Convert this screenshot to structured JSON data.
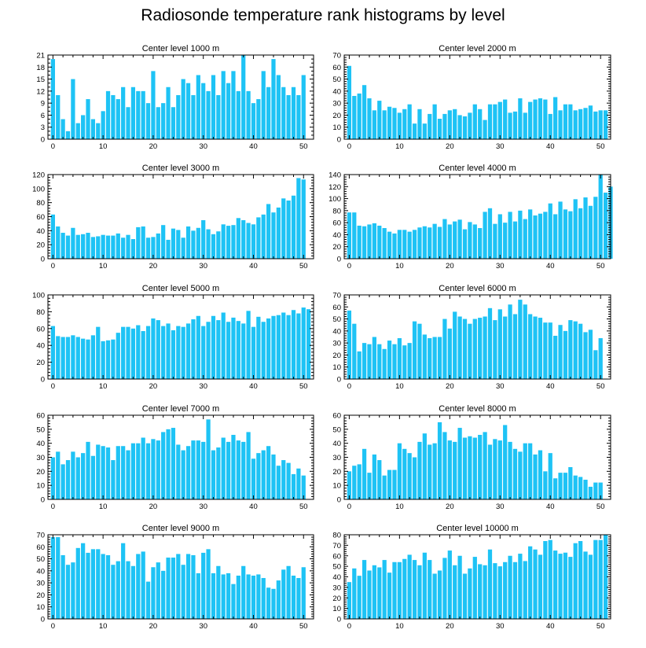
{
  "figure_title": "Radiosonde temperature rank histograms by level",
  "colors": {
    "bar": "#1ec3f5",
    "axis": "#000000"
  },
  "chart_data": [
    {
      "type": "bar",
      "title": "Center level 1000 m",
      "xlim": [
        -1,
        52
      ],
      "ylim": [
        0,
        21
      ],
      "xticks": [
        0,
        10,
        20,
        30,
        40,
        50
      ],
      "yticks": [
        0,
        3,
        6,
        9,
        12,
        15,
        18,
        21
      ],
      "values": [
        20,
        11,
        5,
        2,
        15,
        4,
        6,
        10,
        5,
        4,
        7,
        12,
        11,
        10,
        13,
        8,
        13,
        12,
        12,
        9,
        17,
        8,
        9,
        13,
        8,
        11,
        15,
        14,
        11,
        16,
        14,
        12,
        16,
        11,
        17,
        14,
        17,
        12,
        21,
        12,
        9,
        10,
        17,
        13,
        20,
        16,
        13,
        11,
        13,
        11,
        16
      ]
    },
    {
      "type": "bar",
      "title": "Center level 2000 m",
      "xlim": [
        -1,
        52
      ],
      "ylim": [
        0,
        70
      ],
      "xticks": [
        0,
        10,
        20,
        30,
        40,
        50
      ],
      "yticks": [
        0,
        10,
        20,
        30,
        40,
        50,
        60,
        70
      ],
      "values": [
        61,
        36,
        38,
        45,
        34,
        24,
        32,
        24,
        27,
        26,
        22,
        25,
        29,
        13,
        25,
        13,
        21,
        29,
        17,
        21,
        24,
        25,
        20,
        19,
        22,
        29,
        25,
        16,
        29,
        29,
        31,
        33,
        22,
        23,
        34,
        22,
        31,
        33,
        34,
        33,
        21,
        35,
        24,
        29,
        29,
        24,
        25,
        26,
        28,
        23,
        24,
        24
      ]
    },
    {
      "type": "bar",
      "title": "Center level 3000 m",
      "xlim": [
        -1,
        52
      ],
      "ylim": [
        0,
        120
      ],
      "xticks": [
        0,
        10,
        20,
        30,
        40,
        50
      ],
      "yticks": [
        0,
        20,
        40,
        60,
        80,
        100,
        120
      ],
      "values": [
        63,
        46,
        37,
        33,
        44,
        34,
        35,
        37,
        31,
        32,
        34,
        33,
        33,
        36,
        30,
        34,
        28,
        45,
        46,
        30,
        31,
        36,
        48,
        27,
        43,
        41,
        30,
        46,
        40,
        44,
        55,
        42,
        35,
        39,
        49,
        47,
        48,
        58,
        55,
        51,
        49,
        59,
        63,
        78,
        66,
        73,
        86,
        83,
        90,
        115,
        113
      ]
    },
    {
      "type": "bar",
      "title": "Center level 4000 m",
      "xlim": [
        -1,
        52
      ],
      "ylim": [
        0,
        140
      ],
      "xticks": [
        0,
        10,
        20,
        30,
        40,
        50
      ],
      "yticks": [
        0,
        20,
        40,
        60,
        80,
        100,
        120,
        140
      ],
      "values": [
        77,
        77,
        55,
        54,
        57,
        59,
        55,
        51,
        45,
        42,
        48,
        48,
        45,
        48,
        52,
        54,
        52,
        58,
        53,
        66,
        57,
        62,
        65,
        49,
        61,
        57,
        51,
        78,
        84,
        58,
        74,
        60,
        78,
        62,
        80,
        66,
        82,
        72,
        75,
        78,
        92,
        74,
        95,
        82,
        79,
        99,
        84,
        102,
        88,
        103,
        140,
        110,
        120
      ]
    },
    {
      "type": "bar",
      "title": "Center level 5000 m",
      "xlim": [
        -1,
        52
      ],
      "ylim": [
        0,
        100
      ],
      "xticks": [
        0,
        10,
        20,
        30,
        40,
        50
      ],
      "yticks": [
        0,
        20,
        40,
        60,
        80,
        100
      ],
      "values": [
        63,
        51,
        50,
        50,
        52,
        50,
        48,
        47,
        52,
        62,
        45,
        46,
        47,
        55,
        62,
        62,
        60,
        64,
        57,
        63,
        72,
        70,
        63,
        66,
        58,
        63,
        62,
        66,
        71,
        75,
        63,
        68,
        75,
        70,
        79,
        68,
        73,
        69,
        66,
        81,
        62,
        74,
        68,
        72,
        75,
        76,
        79,
        76,
        82,
        78,
        85,
        83
      ]
    },
    {
      "type": "bar",
      "title": "Center level 6000 m",
      "xlim": [
        -1,
        52
      ],
      "ylim": [
        0,
        70
      ],
      "xticks": [
        0,
        10,
        20,
        30,
        40,
        50
      ],
      "yticks": [
        0,
        10,
        20,
        30,
        40,
        50,
        60,
        70
      ],
      "values": [
        57,
        46,
        23,
        30,
        29,
        35,
        29,
        25,
        32,
        29,
        34,
        28,
        30,
        48,
        46,
        37,
        34,
        35,
        35,
        50,
        42,
        56,
        52,
        50,
        46,
        50,
        51,
        52,
        59,
        49,
        58,
        52,
        62,
        54,
        66,
        62,
        54,
        52,
        51,
        47,
        47,
        36,
        45,
        40,
        49,
        48,
        46,
        39,
        41,
        24,
        34
      ]
    },
    {
      "type": "bar",
      "title": "Center level 7000 m",
      "xlim": [
        -1,
        52
      ],
      "ylim": [
        0,
        60
      ],
      "xticks": [
        0,
        10,
        20,
        30,
        40,
        50
      ],
      "yticks": [
        0,
        10,
        20,
        30,
        40,
        50,
        60
      ],
      "values": [
        30,
        34,
        25,
        28,
        34,
        30,
        33,
        41,
        31,
        39,
        38,
        37,
        28,
        38,
        38,
        35,
        40,
        40,
        44,
        40,
        43,
        42,
        48,
        50,
        51,
        39,
        35,
        38,
        42,
        42,
        41,
        57,
        35,
        37,
        44,
        41,
        46,
        42,
        41,
        48,
        29,
        33,
        35,
        38,
        32,
        24,
        28,
        26,
        18,
        22,
        17
      ]
    },
    {
      "type": "bar",
      "title": "Center level 8000 m",
      "xlim": [
        -1,
        52
      ],
      "ylim": [
        0,
        60
      ],
      "xticks": [
        0,
        10,
        20,
        30,
        40,
        50
      ],
      "yticks": [
        0,
        10,
        20,
        30,
        40,
        50,
        60
      ],
      "values": [
        20,
        24,
        25,
        36,
        19,
        32,
        28,
        17,
        21,
        21,
        40,
        36,
        33,
        30,
        41,
        47,
        39,
        40,
        55,
        48,
        42,
        41,
        51,
        44,
        45,
        44,
        46,
        48,
        39,
        43,
        42,
        53,
        41,
        36,
        34,
        40,
        40,
        32,
        35,
        20,
        33,
        15,
        19,
        19,
        23,
        17,
        16,
        14,
        9,
        12,
        12
      ]
    },
    {
      "type": "bar",
      "title": "Center level 9000 m",
      "xlim": [
        -1,
        52
      ],
      "ylim": [
        0,
        70
      ],
      "xticks": [
        0,
        10,
        20,
        30,
        40,
        50
      ],
      "yticks": [
        0,
        10,
        20,
        30,
        40,
        50,
        60,
        70
      ],
      "values": [
        68,
        68,
        53,
        45,
        47,
        59,
        63,
        55,
        58,
        58,
        54,
        53,
        45,
        48,
        63,
        48,
        44,
        54,
        56,
        31,
        43,
        47,
        40,
        51,
        51,
        54,
        45,
        54,
        53,
        38,
        55,
        58,
        38,
        44,
        37,
        38,
        29,
        36,
        44,
        37,
        36,
        37,
        34,
        26,
        25,
        32,
        41,
        44,
        36,
        34,
        43
      ]
    },
    {
      "type": "bar",
      "title": "Center level 10000 m",
      "xlim": [
        -1,
        52
      ],
      "ylim": [
        0,
        80
      ],
      "xticks": [
        0,
        10,
        20,
        30,
        40,
        50
      ],
      "yticks": [
        0,
        10,
        20,
        30,
        40,
        50,
        60,
        70,
        80
      ],
      "values": [
        35,
        48,
        41,
        56,
        46,
        51,
        49,
        56,
        44,
        54,
        54,
        57,
        61,
        56,
        51,
        63,
        56,
        43,
        46,
        58,
        65,
        51,
        60,
        43,
        48,
        59,
        52,
        51,
        66,
        53,
        50,
        54,
        60,
        54,
        62,
        55,
        69,
        66,
        61,
        74,
        75,
        65,
        62,
        63,
        59,
        72,
        74,
        64,
        61,
        75,
        75,
        80
      ]
    }
  ]
}
